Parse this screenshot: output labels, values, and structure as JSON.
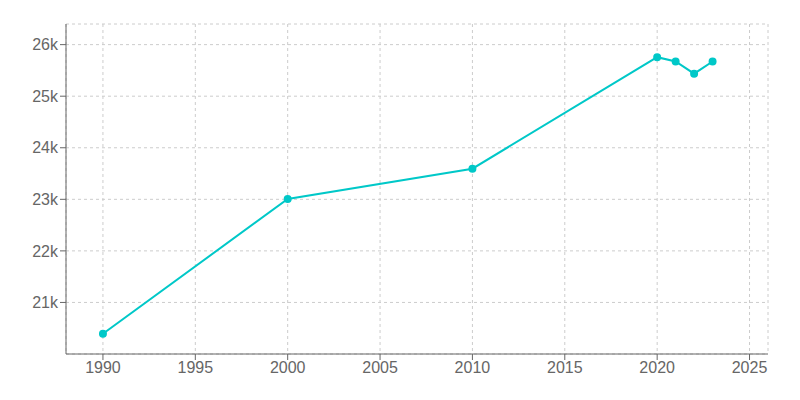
{
  "chart_data": {
    "type": "line",
    "x": [
      1990,
      2000,
      2010,
      2020,
      2021,
      2022,
      2023
    ],
    "values": [
      20393,
      23007,
      23594,
      25757,
      25673,
      25436,
      25673
    ],
    "color": "#00C8C8",
    "marker": "circle",
    "xlim": [
      1988,
      2026
    ],
    "ylim": [
      20000,
      26400
    ],
    "xticks": [
      1990,
      1995,
      2000,
      2005,
      2010,
      2015,
      2020,
      2025
    ],
    "yticks": [
      {
        "value": 21000,
        "label": "21k"
      },
      {
        "value": 22000,
        "label": "22k"
      },
      {
        "value": 23000,
        "label": "23k"
      },
      {
        "value": 24000,
        "label": "24k"
      },
      {
        "value": 25000,
        "label": "25k"
      },
      {
        "value": 26000,
        "label": "26k"
      }
    ],
    "grid": true
  }
}
